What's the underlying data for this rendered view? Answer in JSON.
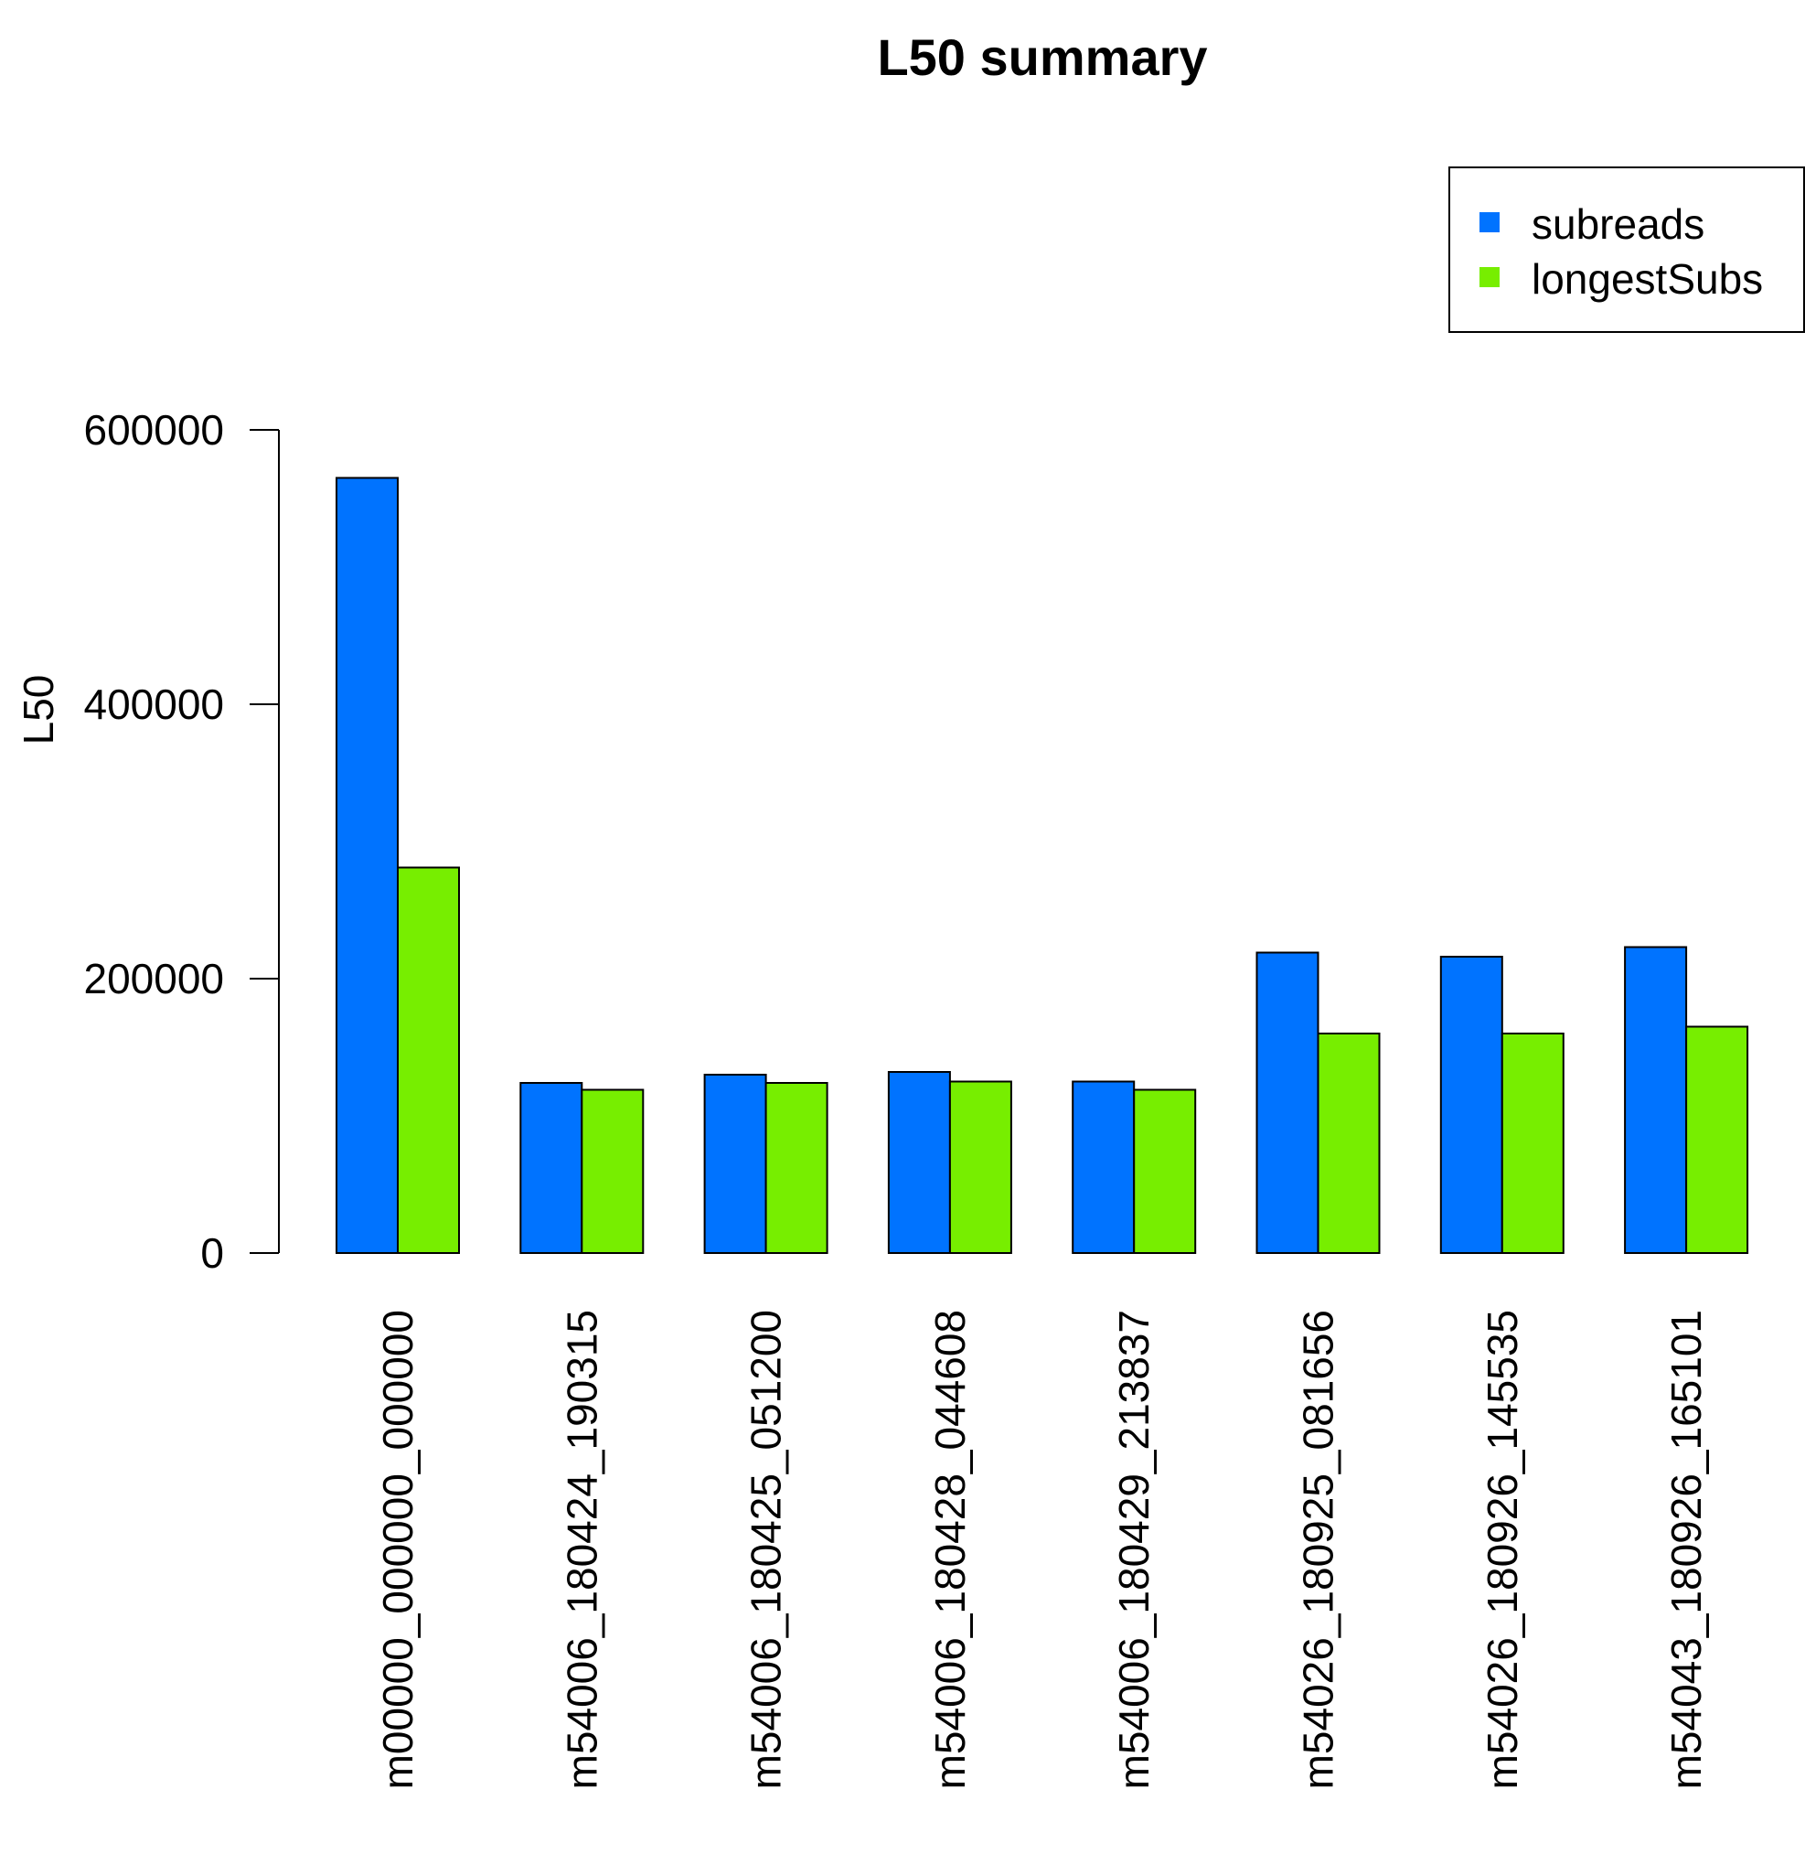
{
  "chart_data": {
    "type": "bar",
    "title": "L50 summary",
    "xlabel": "",
    "ylabel": "L50",
    "ylim": [
      0,
      600000
    ],
    "yticks": [
      "0",
      "200000",
      "400000",
      "600000"
    ],
    "grid": false,
    "legend_position": "top-right",
    "categories": [
      "m00000_000000_000000",
      "m54006_180424_190315",
      "m54006_180425_051200",
      "m54006_180428_044608",
      "m54006_180429_213837",
      "m54026_180925_081656",
      "m54026_180926_145535",
      "m54043_180926_165101"
    ],
    "series": [
      {
        "name": "subreads",
        "color": "#0073ff",
        "values": [
          565000,
          124000,
          130000,
          132000,
          125000,
          219000,
          216000,
          223000
        ]
      },
      {
        "name": "longestSubs",
        "color": "#77ee00",
        "values": [
          281000,
          119000,
          124000,
          125000,
          119000,
          160000,
          160000,
          165000
        ]
      }
    ]
  }
}
